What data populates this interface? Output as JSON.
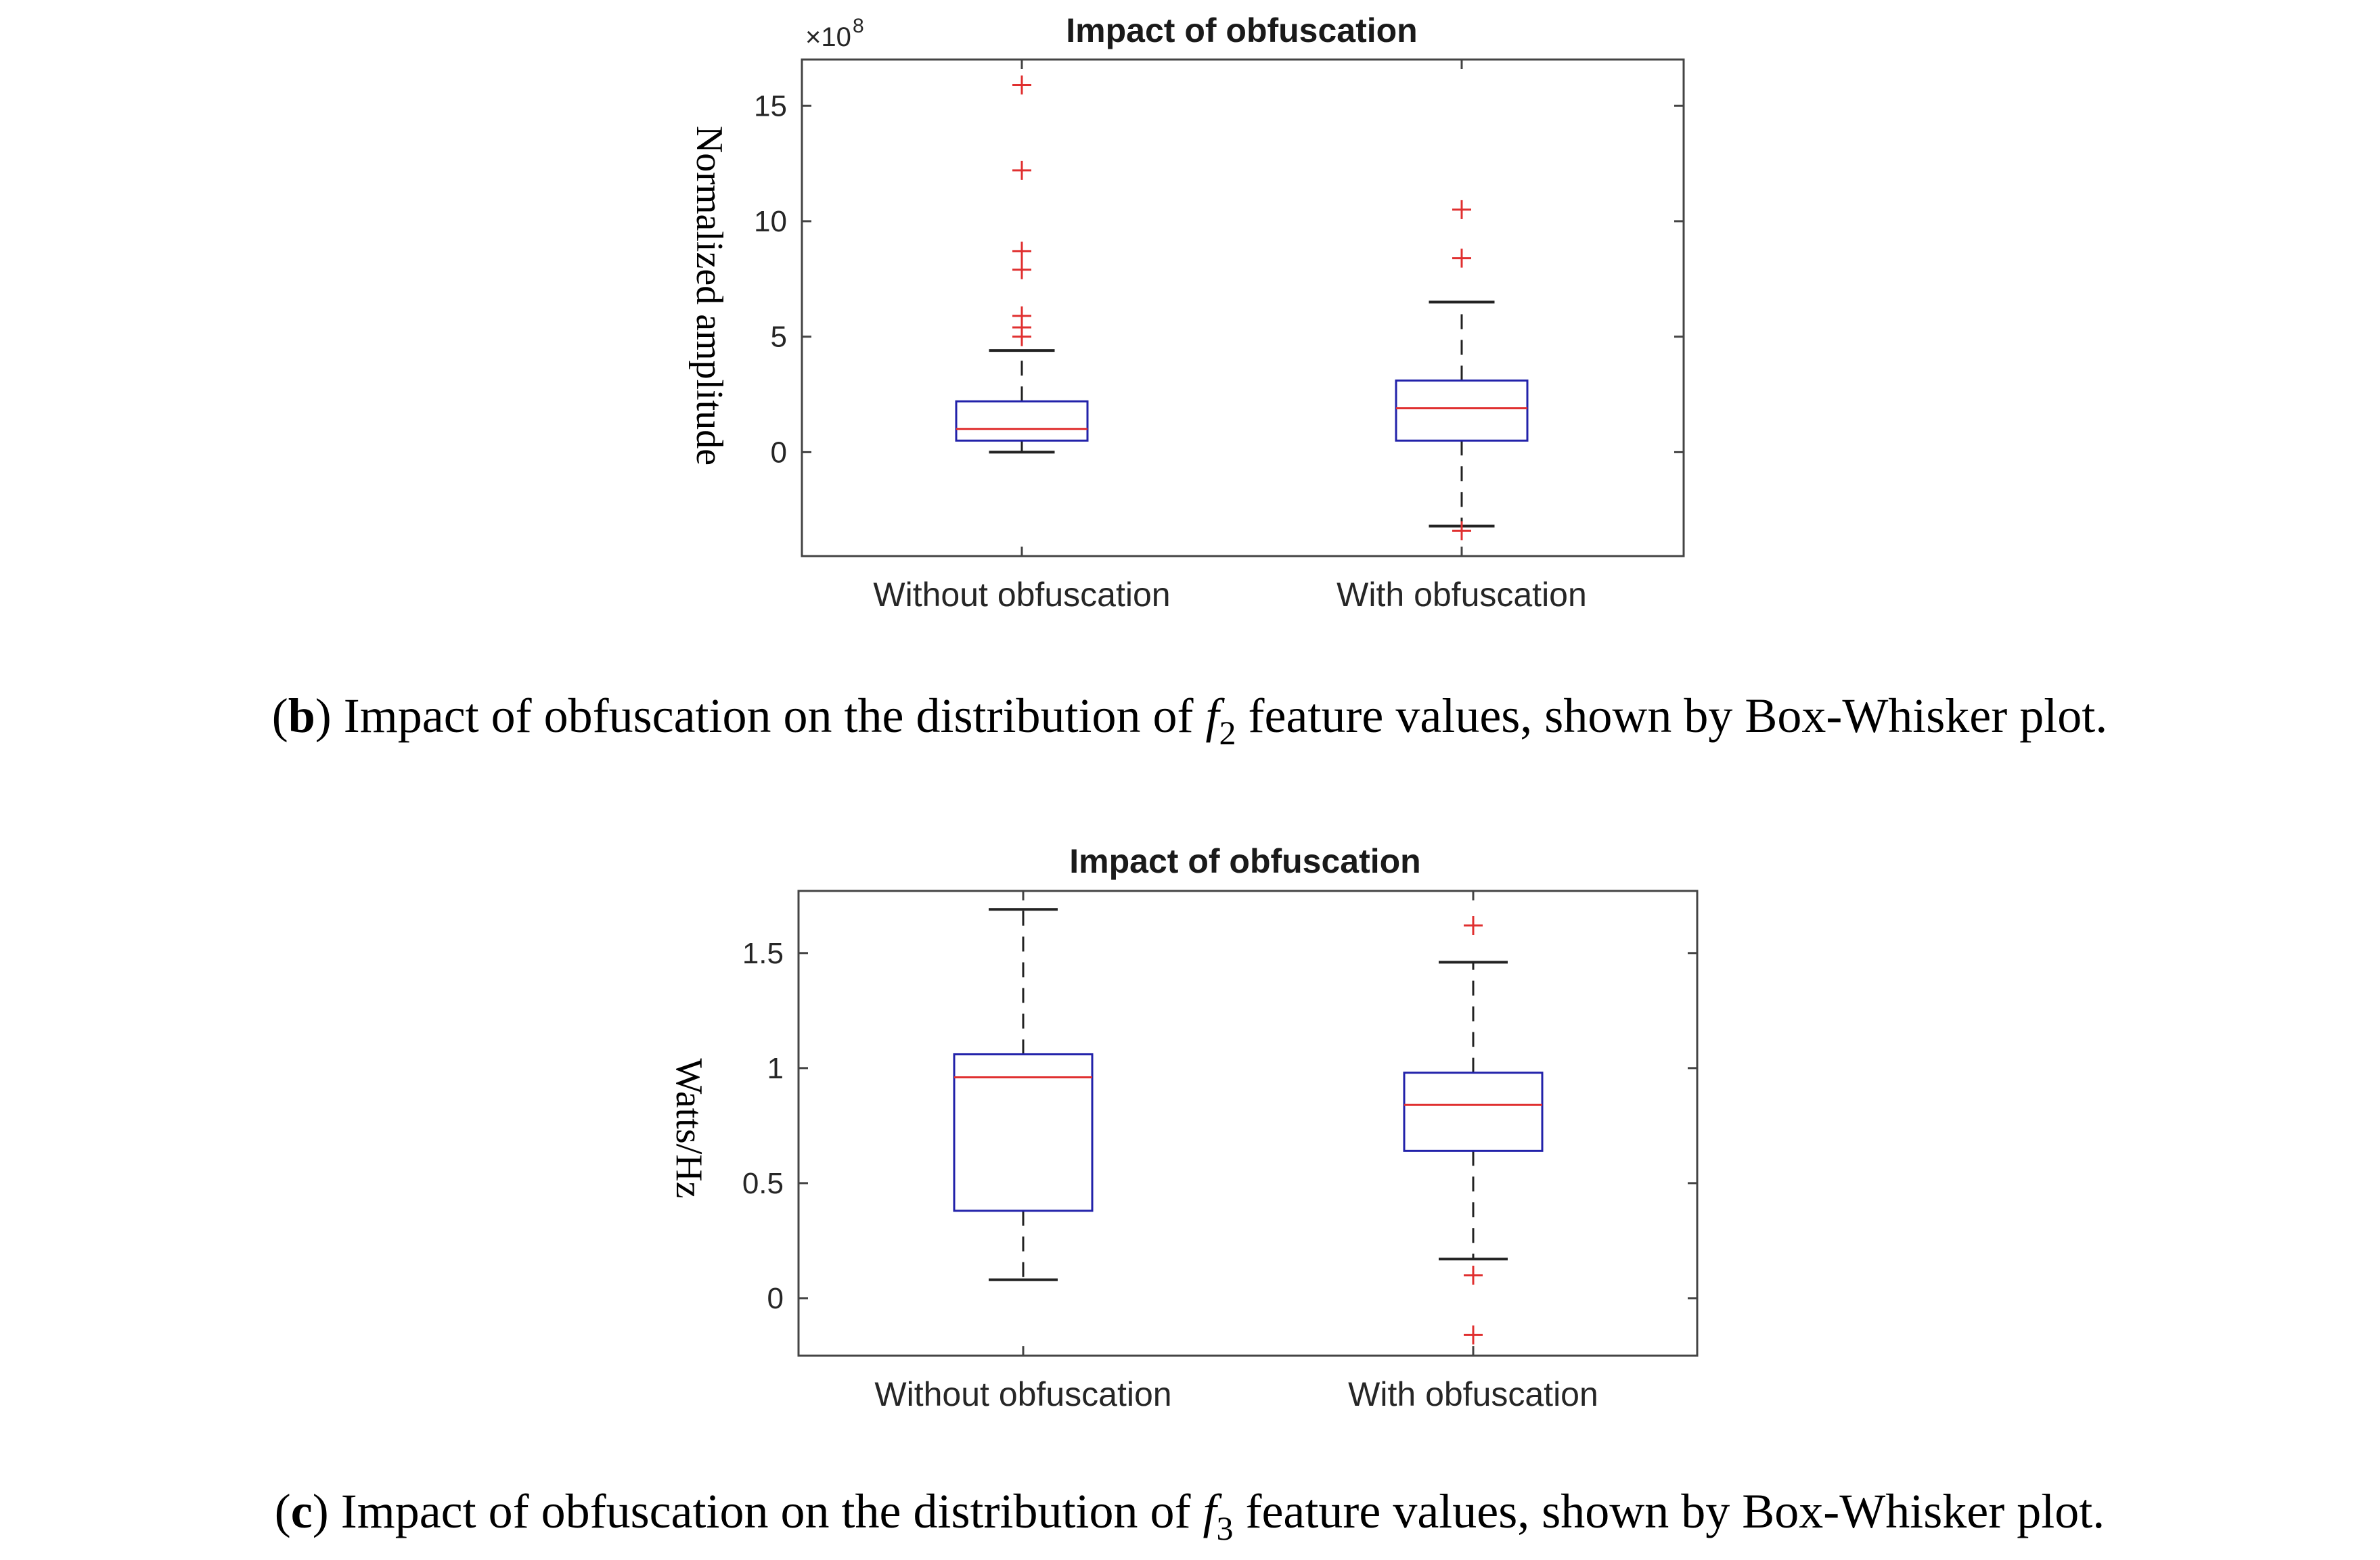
{
  "chart_data": [
    {
      "type": "box",
      "panel_letter": "b",
      "caption_pre": ") Impact of obfuscation on the distribution of ",
      "caption_symbol": "f",
      "caption_sub": "2",
      "caption_post": " feature values, shown by Box-Whisker plot.",
      "title": "Impact of obfuscation",
      "ylabel": "Normalized amplitude",
      "yexponent_base": "×10",
      "yexponent_power": "8",
      "ylim": [
        -4.5,
        17
      ],
      "yticks": [
        0,
        5,
        10,
        15
      ],
      "categories": [
        "Without obfuscation",
        "With obfuscation"
      ],
      "boxes": [
        {
          "lower_whisker": 0,
          "q1": 0.5,
          "median": 1.0,
          "q3": 2.2,
          "upper_whisker": 4.4,
          "outliers": [
            5.0,
            5.4,
            5.9,
            7.9,
            8.7,
            12.2,
            15.9
          ]
        },
        {
          "lower_whisker": -3.2,
          "q1": 0.5,
          "median": 1.9,
          "q3": 3.1,
          "upper_whisker": 6.5,
          "outliers": [
            -3.4,
            8.4,
            10.5
          ]
        }
      ]
    },
    {
      "type": "box",
      "panel_letter": "c",
      "caption_pre": ") Impact of obfuscation on the distribution of ",
      "caption_symbol": "f",
      "caption_sub": "3",
      "caption_post": " feature values, shown by Box-Whisker plot.",
      "title": "Impact of obfuscation",
      "ylabel": "Watts/Hz",
      "ylim": [
        -0.25,
        1.77
      ],
      "yticks": [
        0,
        0.5,
        1,
        1.5
      ],
      "categories": [
        "Without obfuscation",
        "With obfuscation"
      ],
      "boxes": [
        {
          "lower_whisker": 0.08,
          "q1": 0.38,
          "median": 0.96,
          "q3": 1.06,
          "upper_whisker": 1.69,
          "outliers": []
        },
        {
          "lower_whisker": 0.17,
          "q1": 0.64,
          "median": 0.84,
          "q3": 0.98,
          "upper_whisker": 1.46,
          "outliers": [
            -0.16,
            0.1,
            1.62
          ]
        }
      ]
    }
  ],
  "colors": {
    "box": "#2222aa",
    "median": "#e03030",
    "whisker": "#222222",
    "outlier": "#e03030",
    "axis": "#444444"
  }
}
